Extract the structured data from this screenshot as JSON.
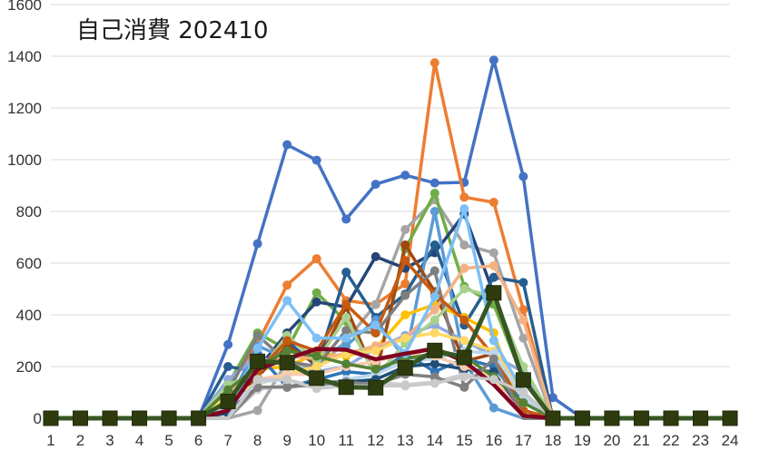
{
  "chart_data": {
    "type": "line",
    "title": "自己消費 202410",
    "xlabel": "",
    "ylabel": "",
    "x": [
      1,
      2,
      3,
      4,
      5,
      6,
      7,
      8,
      9,
      10,
      11,
      12,
      13,
      14,
      15,
      16,
      17,
      18,
      19,
      20,
      21,
      22,
      23,
      24
    ],
    "x_tick_labels": [
      "1",
      "2",
      "3",
      "4",
      "5",
      "6",
      "7",
      "8",
      "9",
      "10",
      "11",
      "12",
      "13",
      "14",
      "15",
      "16",
      "17",
      "18",
      "19",
      "20",
      "21",
      "22",
      "23",
      "24"
    ],
    "ylim": [
      0,
      1600
    ],
    "y_ticks": [
      0,
      200,
      400,
      600,
      800,
      1000,
      1200,
      1400,
      1600
    ],
    "y_tick_labels": [
      "0",
      "200",
      "400",
      "600",
      "800",
      "1000",
      "1200",
      "1400",
      "1600"
    ],
    "grid": "horizontal",
    "legend": "none",
    "series": [
      {
        "color": "#4472c4",
        "marker": "circle",
        "values": [
          0,
          0,
          0,
          0,
          0,
          0,
          285,
          675,
          1058,
          998,
          770,
          905,
          940,
          910,
          912,
          1385,
          935,
          80,
          0,
          0,
          0,
          0,
          0,
          0
        ]
      },
      {
        "color": "#ed7d31",
        "marker": "circle",
        "values": [
          0,
          0,
          0,
          0,
          0,
          0,
          120,
          290,
          515,
          617,
          455,
          440,
          520,
          1375,
          855,
          835,
          420,
          0,
          0,
          0,
          0,
          0,
          0,
          0
        ]
      },
      {
        "color": "#a5a5a5",
        "marker": "circle",
        "values": [
          0,
          0,
          0,
          0,
          0,
          0,
          0,
          30,
          220,
          190,
          300,
          440,
          730,
          845,
          670,
          640,
          310,
          0,
          0,
          0,
          0,
          0,
          0,
          0
        ]
      },
      {
        "color": "#70ad47",
        "marker": "circle",
        "values": [
          0,
          0,
          0,
          0,
          0,
          0,
          130,
          330,
          265,
          485,
          375,
          175,
          655,
          870,
          510,
          440,
          150,
          0,
          0,
          0,
          0,
          0,
          0,
          0
        ]
      },
      {
        "color": "#264478",
        "marker": "circle",
        "values": [
          0,
          0,
          0,
          0,
          0,
          0,
          0,
          190,
          330,
          450,
          430,
          625,
          580,
          640,
          790,
          480,
          150,
          0,
          0,
          0,
          0,
          0,
          0,
          0
        ]
      },
      {
        "color": "#255e91",
        "marker": "circle",
        "values": [
          0,
          0,
          0,
          0,
          0,
          0,
          200,
          180,
          300,
          200,
          565,
          390,
          480,
          670,
          360,
          545,
          525,
          0,
          0,
          0,
          0,
          0,
          0,
          0
        ]
      },
      {
        "color": "#5b9bd5",
        "marker": "circle",
        "values": [
          0,
          0,
          0,
          0,
          0,
          0,
          60,
          280,
          230,
          250,
          280,
          380,
          230,
          800,
          220,
          40,
          0,
          0,
          0,
          0,
          0,
          0,
          0,
          0
        ]
      },
      {
        "color": "#ffc000",
        "marker": "circle",
        "values": [
          0,
          0,
          0,
          0,
          0,
          0,
          80,
          190,
          200,
          250,
          240,
          270,
          400,
          440,
          390,
          330,
          0,
          0,
          0,
          0,
          0,
          0,
          0,
          0
        ]
      },
      {
        "color": "#9e480e",
        "marker": "circle",
        "values": [
          0,
          0,
          0,
          0,
          0,
          0,
          60,
          160,
          280,
          210,
          430,
          160,
          670,
          490,
          220,
          250,
          30,
          0,
          0,
          0,
          0,
          0,
          0,
          0
        ]
      },
      {
        "color": "#8faadc",
        "marker": "circle",
        "values": [
          0,
          0,
          0,
          0,
          0,
          0,
          150,
          240,
          200,
          180,
          200,
          270,
          320,
          360,
          300,
          240,
          180,
          0,
          0,
          0,
          0,
          0,
          0,
          0
        ]
      },
      {
        "color": "#f4b183",
        "marker": "circle",
        "values": [
          0,
          0,
          0,
          0,
          0,
          0,
          100,
          190,
          240,
          230,
          250,
          280,
          310,
          420,
          580,
          590,
          380,
          0,
          0,
          0,
          0,
          0,
          0,
          0
        ]
      },
      {
        "color": "#7f7f7f",
        "marker": "circle",
        "values": [
          0,
          0,
          0,
          0,
          0,
          0,
          100,
          320,
          220,
          200,
          340,
          330,
          475,
          570,
          120,
          230,
          0,
          0,
          0,
          0,
          0,
          0,
          0,
          0
        ]
      },
      {
        "color": "#a9d18e",
        "marker": "circle",
        "values": [
          0,
          0,
          0,
          0,
          0,
          0,
          130,
          170,
          320,
          220,
          390,
          160,
          290,
          380,
          500,
          470,
          200,
          0,
          0,
          0,
          0,
          0,
          0,
          0
        ]
      },
      {
        "color": "#2e75b6",
        "marker": "circle",
        "values": [
          0,
          0,
          0,
          0,
          0,
          0,
          0,
          250,
          120,
          150,
          180,
          170,
          250,
          180,
          230,
          200,
          60,
          0,
          0,
          0,
          0,
          0,
          0,
          0
        ]
      },
      {
        "color": "#c55a11",
        "marker": "circle",
        "values": [
          0,
          0,
          0,
          0,
          0,
          0,
          60,
          180,
          300,
          260,
          440,
          330,
          610,
          480,
          380,
          240,
          30,
          0,
          0,
          0,
          0,
          0,
          0,
          0
        ]
      },
      {
        "color": "#ffd966",
        "marker": "circle",
        "values": [
          0,
          0,
          0,
          0,
          0,
          0,
          90,
          130,
          170,
          200,
          250,
          260,
          310,
          330,
          300,
          260,
          100,
          0,
          0,
          0,
          0,
          0,
          0,
          0
        ]
      },
      {
        "color": "#d0cece",
        "marker": "circle",
        "values": [
          0,
          0,
          0,
          0,
          0,
          0,
          0,
          110,
          130,
          120,
          150,
          140,
          130,
          140,
          170,
          150,
          60,
          0,
          0,
          0,
          0,
          0,
          0,
          0
        ]
      },
      {
        "color": "#bdd7ee",
        "marker": "circle",
        "values": [
          0,
          0,
          0,
          0,
          0,
          0,
          40,
          140,
          150,
          120,
          150,
          170,
          220,
          230,
          260,
          250,
          80,
          0,
          0,
          0,
          0,
          0,
          0,
          0
        ]
      },
      {
        "color": "#1f4e79",
        "marker": "circle",
        "values": [
          0,
          0,
          0,
          0,
          0,
          0,
          20,
          120,
          120,
          140,
          140,
          150,
          200,
          210,
          190,
          180,
          0,
          0,
          0,
          0,
          0,
          0,
          0,
          0
        ]
      },
      {
        "color": "#f8cbad",
        "marker": "circle",
        "values": [
          0,
          0,
          0,
          0,
          0,
          0,
          0,
          150,
          170,
          170,
          200,
          220,
          250,
          240,
          200,
          160,
          0,
          0,
          0,
          0,
          0,
          0,
          0,
          0
        ]
      },
      {
        "color": "#548235",
        "marker": "circle",
        "values": [
          0,
          0,
          0,
          0,
          0,
          0,
          110,
          200,
          260,
          240,
          210,
          190,
          230,
          250,
          240,
          160,
          60,
          0,
          0,
          0,
          0,
          0,
          0,
          0
        ]
      },
      {
        "color": "#7cc0f7",
        "marker": "circle",
        "values": [
          0,
          0,
          0,
          0,
          0,
          0,
          0,
          270,
          455,
          310,
          310,
          360,
          250,
          470,
          810,
          300,
          100,
          0,
          0,
          0,
          0,
          0,
          0,
          0
        ]
      },
      {
        "color": "#808080",
        "marker": "circle",
        "values": [
          0,
          0,
          0,
          0,
          0,
          0,
          0,
          120,
          120,
          130,
          140,
          130,
          170,
          160,
          120,
          230,
          0,
          0,
          0,
          0,
          0,
          0,
          0,
          0
        ]
      },
      {
        "color": "#800020",
        "marker": "none",
        "values": [
          0,
          0,
          0,
          0,
          0,
          0,
          30,
          190,
          230,
          268,
          265,
          228,
          250,
          270,
          220,
          130,
          10,
          0,
          0,
          0,
          0,
          0,
          0,
          0
        ]
      },
      {
        "color": "#c9c9c9",
        "marker": "circle",
        "values": [
          0,
          0,
          0,
          0,
          0,
          0,
          0,
          150,
          150,
          115,
          125,
          125,
          125,
          135,
          160,
          150,
          100,
          0,
          0,
          0,
          0,
          0,
          0,
          0
        ]
      },
      {
        "color": "#375623",
        "marker": "square",
        "values": [
          0,
          0,
          0,
          0,
          0,
          0,
          65,
          220,
          215,
          155,
          120,
          118,
          195,
          262,
          235,
          485,
          148,
          0,
          0,
          0,
          0,
          0,
          0,
          0
        ]
      }
    ]
  }
}
